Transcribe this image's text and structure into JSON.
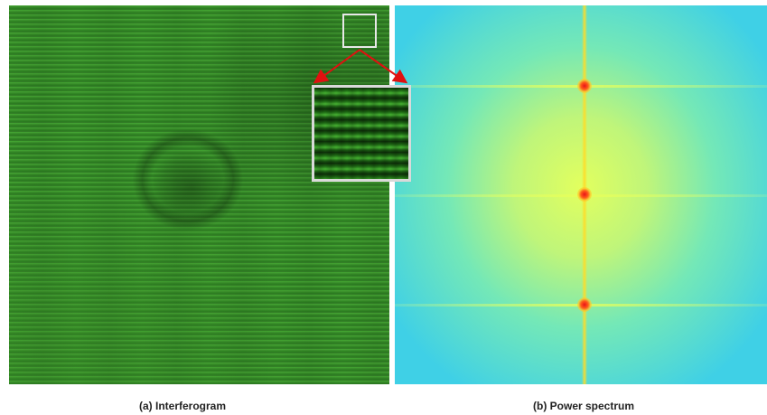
{
  "figure": {
    "panel_a_caption": "(a) Interferogram",
    "panel_b_caption": "(b) Power spectrum"
  },
  "colors": {
    "interferogram_green": "#2f8a24",
    "spectrum_center": "#e2ff5e",
    "spectrum_edge": "#3fd0e6",
    "peak_red": "#e8141a",
    "arrow_red": "#e01010",
    "inset_border": "#d9d9d9"
  }
}
